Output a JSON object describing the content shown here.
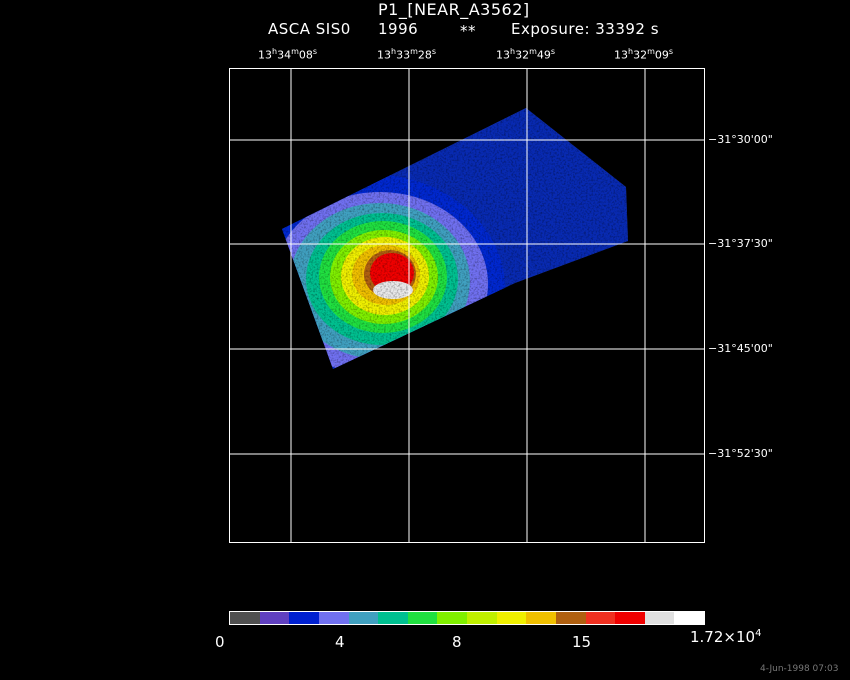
{
  "header": {
    "title": "P1_[NEAR_A3562]",
    "instrument": "ASCA SIS0",
    "year": "1996",
    "marker": "**",
    "exposure": "Exposure: 33392 s"
  },
  "ra_labels": [
    {
      "h": "13",
      "hs": "h",
      "m": "34",
      "ms": "m",
      "s": "08",
      "ss": "s"
    },
    {
      "h": "13",
      "hs": "h",
      "m": "33",
      "ms": "m",
      "s": "28",
      "ss": "s"
    },
    {
      "h": "13",
      "hs": "h",
      "m": "32",
      "ms": "m",
      "s": "49",
      "ss": "s"
    },
    {
      "h": "13",
      "hs": "h",
      "m": "32",
      "ms": "m",
      "s": "09",
      "ss": "s"
    }
  ],
  "dec_labels": [
    "−31°30'00\"",
    "−31°37'30\"",
    "−31°45'00\"",
    "−31°52'30\""
  ],
  "colorbar": {
    "colors": [
      "#505050",
      "#6040c0",
      "#0020d0",
      "#7070f0",
      "#40a0c0",
      "#00c090",
      "#20e040",
      "#80f000",
      "#c0f000",
      "#f0f000",
      "#f0c000",
      "#b06010",
      "#f03020",
      "#f00000",
      "#e0e0e0",
      "#ffffff"
    ],
    "labels": {
      "l0": "0",
      "l1": "4",
      "l2": "8",
      "l3": "15",
      "l4_mant": "1.72×10",
      "l4_exp": "4"
    }
  },
  "timestamp": "4-Jun-1998 07:03"
}
